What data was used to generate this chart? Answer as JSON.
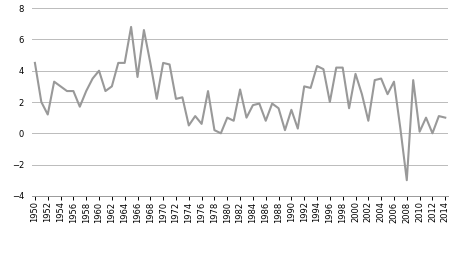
{
  "years": [
    1950,
    1951,
    1952,
    1953,
    1954,
    1955,
    1956,
    1957,
    1958,
    1959,
    1960,
    1961,
    1962,
    1963,
    1964,
    1965,
    1966,
    1967,
    1968,
    1969,
    1970,
    1971,
    1972,
    1973,
    1974,
    1975,
    1976,
    1977,
    1978,
    1979,
    1980,
    1981,
    1982,
    1983,
    1984,
    1985,
    1986,
    1987,
    1988,
    1989,
    1990,
    1991,
    1992,
    1993,
    1994,
    1995,
    1996,
    1997,
    1998,
    1999,
    2000,
    2001,
    2002,
    2003,
    2004,
    2005,
    2006,
    2007,
    2008,
    2009,
    2010,
    2011,
    2012,
    2013,
    2014
  ],
  "values": [
    4.5,
    2.0,
    1.2,
    3.3,
    3.0,
    2.7,
    2.7,
    1.7,
    2.7,
    3.5,
    4.0,
    2.7,
    3.0,
    4.5,
    4.5,
    6.8,
    3.6,
    6.6,
    4.5,
    2.2,
    4.5,
    4.4,
    2.2,
    2.3,
    0.5,
    1.1,
    0.6,
    2.7,
    0.2,
    0.0,
    1.0,
    0.8,
    2.8,
    1.0,
    1.8,
    1.9,
    0.8,
    1.9,
    1.6,
    0.2,
    1.5,
    0.3,
    3.0,
    2.9,
    4.3,
    4.1,
    2.0,
    4.2,
    4.2,
    1.6,
    3.8,
    2.5,
    0.8,
    3.4,
    3.5,
    2.5,
    3.3,
    0.3,
    -3.0,
    3.4,
    0.1,
    1.0,
    0.0,
    1.1,
    1.0
  ],
  "line_color": "#999999",
  "line_width": 1.5,
  "ylim": [
    -4,
    8
  ],
  "yticks": [
    -4,
    -2,
    0,
    2,
    4,
    6,
    8
  ],
  "xtick_step": 2,
  "background_color": "#ffffff",
  "grid_color": "#bbbbbb",
  "tick_label_fontsize": 6.0
}
